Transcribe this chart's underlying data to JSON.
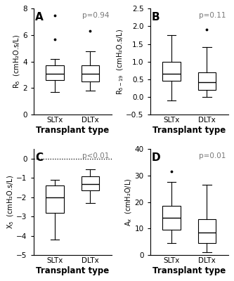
{
  "panels": [
    {
      "label": "A",
      "ylabel_text": "R$_5$  (cmH₂O.s/L)",
      "pvalue": "p=0.94",
      "ylim": [
        0,
        8
      ],
      "yticks": [
        0,
        2,
        4,
        6,
        8
      ],
      "dotted_line": null,
      "SLTx": {
        "q1": 2.6,
        "median": 3.1,
        "q3": 3.7,
        "whisker_low": 1.7,
        "whisker_high": 4.2,
        "outliers": [
          5.7,
          7.5
        ]
      },
      "DLTx": {
        "q1": 2.5,
        "median": 3.1,
        "q3": 3.7,
        "whisker_low": 1.8,
        "whisker_high": 4.8,
        "outliers": [
          6.3
        ]
      }
    },
    {
      "label": "B",
      "ylabel_text": "R$_{5-19}$  (cmH₂O.s/L)",
      "pvalue": "p=0.11",
      "ylim": [
        -0.5,
        2.5
      ],
      "yticks": [
        -0.5,
        0.0,
        0.5,
        1.0,
        1.5,
        2.0,
        2.5
      ],
      "dotted_line": null,
      "SLTx": {
        "q1": 0.45,
        "median": 0.65,
        "q3": 1.0,
        "whisker_low": -0.1,
        "whisker_high": 1.75,
        "outliers": []
      },
      "DLTx": {
        "q1": 0.2,
        "median": 0.42,
        "q3": 0.7,
        "whisker_low": 0.0,
        "whisker_high": 1.42,
        "outliers": [
          1.9
        ]
      }
    },
    {
      "label": "C",
      "ylabel_text": "X$_5$  (cmH₂O.s/L)",
      "pvalue": "p<0.01",
      "ylim": [
        -5,
        0.5
      ],
      "yticks": [
        -5,
        -4,
        -3,
        -2,
        -1,
        0
      ],
      "dotted_line": 0,
      "SLTx": {
        "q1": -2.8,
        "median": -2.0,
        "q3": -1.4,
        "whisker_low": -4.2,
        "whisker_high": -1.1,
        "outliers": []
      },
      "DLTx": {
        "q1": -1.65,
        "median": -1.3,
        "q3": -0.9,
        "whisker_low": -2.3,
        "whisker_high": -0.55,
        "outliers": []
      }
    },
    {
      "label": "D",
      "ylabel_text": "A$_x$  (cmH₂O/L)",
      "pvalue": "p=0.01",
      "ylim": [
        0,
        40
      ],
      "yticks": [
        0,
        10,
        20,
        30,
        40
      ],
      "dotted_line": null,
      "SLTx": {
        "q1": 9.5,
        "median": 14.0,
        "q3": 18.5,
        "whisker_low": 4.5,
        "whisker_high": 27.5,
        "outliers": [
          31.5
        ]
      },
      "DLTx": {
        "q1": 4.5,
        "median": 8.5,
        "q3": 13.5,
        "whisker_low": 1.0,
        "whisker_high": 26.5,
        "outliers": []
      }
    }
  ],
  "xlabel": "Transplant type",
  "xtick_labels": [
    "SLTx",
    "DLTx"
  ],
  "box_color": "white",
  "edge_color": "black",
  "box_width": 0.5,
  "background_color": "white",
  "pvalue_fontsize": 7.5,
  "label_fontsize": 9,
  "tick_fontsize": 7.5,
  "xlabel_fontsize": 8.5
}
